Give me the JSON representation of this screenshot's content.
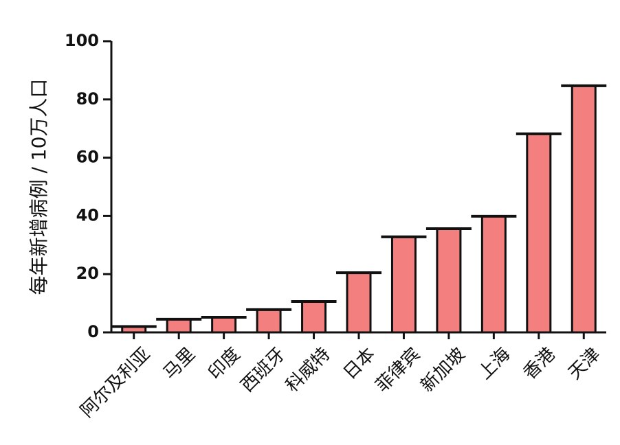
{
  "chart_data": {
    "type": "bar",
    "y_label": "每年新增病例 / 10万人口",
    "categories": [
      "阿尔及利亚",
      "马里",
      "印度",
      "西班牙",
      "科威特",
      "日本",
      "菲律宾",
      "新加坡",
      "上海",
      "香港",
      "天津"
    ],
    "values": [
      2,
      4.5,
      5.2,
      7.8,
      10.6,
      20.5,
      32.8,
      35.6,
      39.9,
      68.2,
      84.7
    ],
    "color": "#f47f7f",
    "ylim": [
      0,
      100
    ],
    "yticks": [
      0,
      20,
      40,
      60,
      80,
      100
    ],
    "grid": false
  }
}
